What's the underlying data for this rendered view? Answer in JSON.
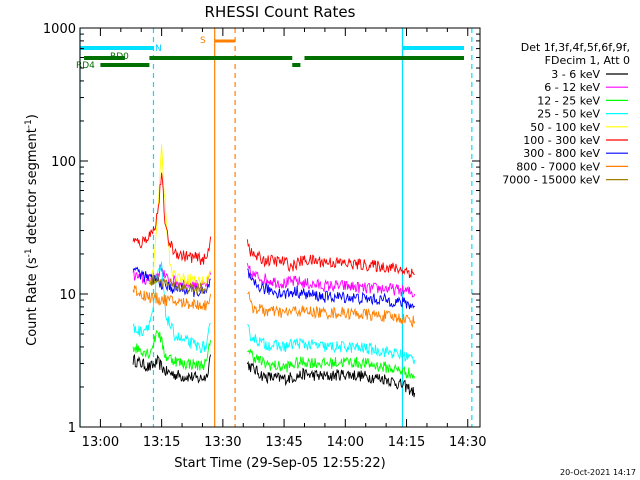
{
  "chart_data": {
    "type": "line",
    "title": "RHESSI Count Rates",
    "xlabel": "Start Time (29-Sep-05 12:55:22)",
    "ylabel": "Count Rate (s",
    "ylabel_sup": "-1",
    "ylabel_tail": " detector segment",
    "ylabel_sup2": "-1",
    "ylabel_close": ")",
    "y_scale": "log",
    "ylim": [
      1,
      1000
    ],
    "xlim": [
      "12:55",
      "14:33"
    ],
    "x_ticks": [
      "13:00",
      "13:15",
      "13:30",
      "13:45",
      "14:00",
      "14:15",
      "14:30"
    ],
    "y_ticks": [
      "1",
      "10",
      "100",
      "1000"
    ],
    "grid": false,
    "legend_header": [
      "Det 1f,3f,4f,5f,6f,9f,",
      "FDecim 1, Att 0"
    ],
    "legend_position": "right",
    "series": [
      {
        "name": "3 - 6 keV",
        "color": "#000000",
        "segments": [
          {
            "x": [
              "13:08",
              "13:10",
              "13:12",
              "13:13",
              "13:14",
              "13:16",
              "13:18",
              "13:20",
              "13:22",
              "13:24",
              "13:26",
              "13:27"
            ],
            "y": [
              3.2,
              3.0,
              2.8,
              2.9,
              3.1,
              2.6,
              2.5,
              2.4,
              2.4,
              2.3,
              2.4,
              3.5
            ]
          },
          {
            "x": [
              "13:36",
              "13:37",
              "13:40",
              "13:45",
              "13:48",
              "13:50",
              "13:55",
              "14:00",
              "14:05",
              "14:10",
              "14:15",
              "14:17"
            ],
            "y": [
              3.0,
              2.8,
              2.4,
              2.3,
              2.4,
              2.5,
              2.4,
              2.5,
              2.4,
              2.3,
              2.0,
              1.8
            ]
          }
        ]
      },
      {
        "name": "6 - 12 keV",
        "color": "#ff00ff",
        "segments": [
          {
            "x": [
              "13:08",
              "13:10",
              "13:12",
              "13:14",
              "13:15",
              "13:16",
              "13:18",
              "13:20",
              "13:22",
              "13:24",
              "13:26",
              "13:27"
            ],
            "y": [
              14,
              13,
              12.5,
              14,
              16,
              13,
              12.5,
              12,
              12,
              11.5,
              11.5,
              14
            ]
          },
          {
            "x": [
              "13:36",
              "13:37",
              "13:40",
              "13:45",
              "13:48",
              "13:50",
              "13:55",
              "14:00",
              "14:05",
              "14:10",
              "14:15",
              "14:17"
            ],
            "y": [
              16,
              14,
              13,
              12,
              12.5,
              12,
              11.5,
              11.5,
              11,
              11,
              10.5,
              10
            ]
          }
        ]
      },
      {
        "name": "12 - 25 keV",
        "color": "#00ff00",
        "segments": [
          {
            "x": [
              "13:08",
              "13:10",
              "13:12",
              "13:13",
              "13:14",
              "13:16",
              "13:18",
              "13:20",
              "13:22",
              "13:24",
              "13:26",
              "13:27"
            ],
            "y": [
              4.0,
              3.8,
              3.6,
              4.2,
              5.5,
              3.4,
              3.2,
              3.0,
              3.0,
              2.9,
              3.0,
              4.5
            ]
          },
          {
            "x": [
              "13:36",
              "13:37",
              "13:40",
              "13:45",
              "13:48",
              "13:50",
              "13:55",
              "14:00",
              "14:05",
              "14:10",
              "14:15",
              "14:17"
            ],
            "y": [
              4.0,
              3.5,
              3.0,
              2.8,
              3.0,
              3.1,
              3.0,
              3.1,
              3.0,
              2.8,
              2.6,
              2.4
            ]
          }
        ]
      },
      {
        "name": "25 - 50 keV",
        "color": "#00ffff",
        "segments": [
          {
            "x": [
              "13:08",
              "13:10",
              "13:12",
              "13:13",
              "13:14",
              "13:15",
              "13:16",
              "13:18",
              "13:20",
              "13:22",
              "13:24",
              "13:26",
              "13:27"
            ],
            "y": [
              5.5,
              5.2,
              6.0,
              8.0,
              14,
              16,
              7.0,
              5.0,
              4.5,
              4.3,
              4.0,
              4.0,
              6.0
            ]
          },
          {
            "x": [
              "13:36",
              "13:37",
              "13:40",
              "13:45",
              "13:48",
              "13:50",
              "13:55",
              "14:00",
              "14:05",
              "14:10",
              "14:15",
              "14:17"
            ],
            "y": [
              5.5,
              4.8,
              4.2,
              4.0,
              4.3,
              4.2,
              4.0,
              4.0,
              3.9,
              3.7,
              3.4,
              3.2
            ]
          }
        ]
      },
      {
        "name": "50 - 100 keV",
        "color": "#ffff00",
        "segments": [
          {
            "x": [
              "13:12",
              "13:13",
              "13:14",
              "13:15",
              "13:16",
              "13:17",
              "13:18",
              "13:20",
              "13:22",
              "13:24",
              "13:26",
              "13:27"
            ],
            "y": [
              12,
              16,
              40,
              120,
              40,
              18,
              14,
              13,
              13,
              12.5,
              12.5,
              15
            ]
          }
        ]
      },
      {
        "name": "100 - 300 keV",
        "color": "#ff0000",
        "segments": [
          {
            "x": [
              "13:08",
              "13:10",
              "13:11",
              "13:12",
              "13:13",
              "13:14",
              "13:15",
              "13:16",
              "13:17",
              "13:18",
              "13:20",
              "13:22",
              "13:24",
              "13:26",
              "13:27"
            ],
            "y": [
              25,
              24,
              26,
              28,
              30,
              40,
              80,
              30,
              24,
              21,
              19.5,
              19,
              18.5,
              18,
              27
            ]
          },
          {
            "x": [
              "13:36",
              "13:37",
              "13:40",
              "13:45",
              "13:47",
              "13:48",
              "13:50",
              "13:55",
              "14:00",
              "14:05",
              "14:10",
              "14:15",
              "14:17"
            ],
            "y": [
              26,
              20,
              18,
              17.5,
              16,
              17,
              18,
              17.5,
              17,
              16.5,
              16,
              15,
              14
            ]
          }
        ]
      },
      {
        "name": "300 - 800 keV",
        "color": "#0000ff",
        "segments": [
          {
            "x": [
              "13:08",
              "13:10",
              "13:12",
              "13:14",
              "13:15",
              "13:16",
              "13:18",
              "13:20",
              "13:22",
              "13:24",
              "13:26",
              "13:27"
            ],
            "y": [
              16,
              14,
              13,
              12.5,
              12,
              11.5,
              11,
              11,
              10.5,
              10.5,
              10,
              13
            ]
          },
          {
            "x": [
              "13:36",
              "13:37",
              "13:40",
              "13:45",
              "13:48",
              "13:50",
              "13:55",
              "14:00",
              "14:05",
              "14:10",
              "14:15",
              "14:17"
            ],
            "y": [
              15,
              12,
              11,
              10,
              10.5,
              10,
              9.5,
              9.5,
              9.2,
              9,
              8.5,
              8
            ]
          }
        ]
      },
      {
        "name": "800 - 7000 keV",
        "color": "#ff8000",
        "segments": [
          {
            "x": [
              "13:08",
              "13:10",
              "13:12",
              "13:14",
              "13:16",
              "13:18",
              "13:20",
              "13:22",
              "13:24",
              "13:26",
              "13:27"
            ],
            "y": [
              11,
              10,
              9.5,
              9.2,
              9,
              8.8,
              8.6,
              8.5,
              8.3,
              8.2,
              10
            ]
          },
          {
            "x": [
              "13:36",
              "13:37",
              "13:40",
              "13:45",
              "13:48",
              "13:50",
              "13:55",
              "14:00",
              "14:05",
              "14:10",
              "14:15",
              "14:17"
            ],
            "y": [
              10.5,
              8,
              7.5,
              7.2,
              7.5,
              7.4,
              7.2,
              7.2,
              7,
              6.8,
              6.5,
              6.2
            ]
          }
        ]
      },
      {
        "name": "7000 - 15000 keV",
        "color": "#a08000",
        "segments": [
          {
            "x": [
              "13:12",
              "13:14",
              "13:16",
              "13:18",
              "13:20",
              "13:22",
              "13:24",
              "13:26"
            ],
            "y": [
              12.5,
              13,
              12,
              11.5,
              11.2,
              11,
              11,
              10.8
            ]
          }
        ]
      }
    ],
    "state_bars": {
      "RD0": {
        "label": "RD0",
        "color": "#007000",
        "x": [
          [
            "12:56",
            "13:06"
          ],
          [
            "13:12",
            "13:47"
          ],
          [
            "13:50",
            "14:33"
          ]
        ]
      },
      "RD4": {
        "label": "RD4",
        "color": "#007000",
        "x": [
          [
            "13:00",
            "13:12"
          ],
          [
            "13:47",
            "13:49"
          ]
        ]
      },
      "N": {
        "label": "N",
        "color": "#00e0ff",
        "x": [
          [
            "12:55",
            "13:13"
          ],
          [
            "14:14",
            "14:33"
          ]
        ]
      },
      "S": {
        "label": "S",
        "color": "#ff8000",
        "x": [
          [
            "13:28",
            "13:33"
          ]
        ]
      }
    },
    "vlines": [
      {
        "x": "12:55",
        "color": "#00e0ff",
        "style": "solid"
      },
      {
        "x": "13:13",
        "color": "#00e0ff",
        "style": "dashed"
      },
      {
        "x": "13:28",
        "color": "#ff8000",
        "style": "solid"
      },
      {
        "x": "13:33",
        "color": "#ff8000",
        "style": "dashed"
      },
      {
        "x": "14:14",
        "color": "#00e0ff",
        "style": "solid"
      },
      {
        "x": "14:31",
        "color": "#00e0ff",
        "style": "dashed"
      }
    ]
  },
  "footer": "20-Oct-2021 14:17"
}
